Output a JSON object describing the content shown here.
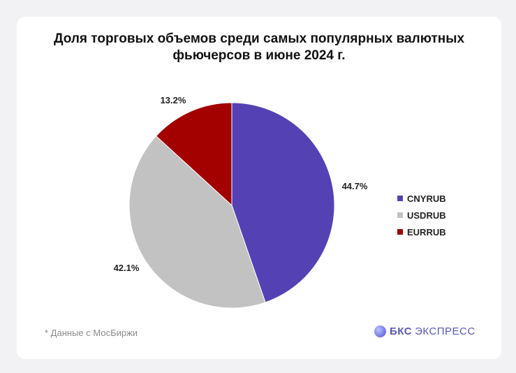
{
  "chart_data": {
    "type": "pie",
    "title_lines": [
      "Доля торговых объемов среди самых популярных валютных",
      "фьючерсов в июне 2024 г."
    ],
    "slices": [
      {
        "name": "CNYRUB",
        "value": 44.7,
        "label": "44.7%",
        "color": "#5442b4"
      },
      {
        "name": "USDRUB",
        "value": 42.1,
        "label": "42.1%",
        "color": "#c2c2c2"
      },
      {
        "name": "EURRUB",
        "value": 13.2,
        "label": "13.2%",
        "color": "#a30000"
      }
    ],
    "legend_position": "right",
    "start": "12 o'clock, clockwise"
  },
  "footnote": "* Данные с МосБиржи",
  "brand": {
    "bold": "БКС",
    "rest": "ЭКСПРЕСС"
  }
}
